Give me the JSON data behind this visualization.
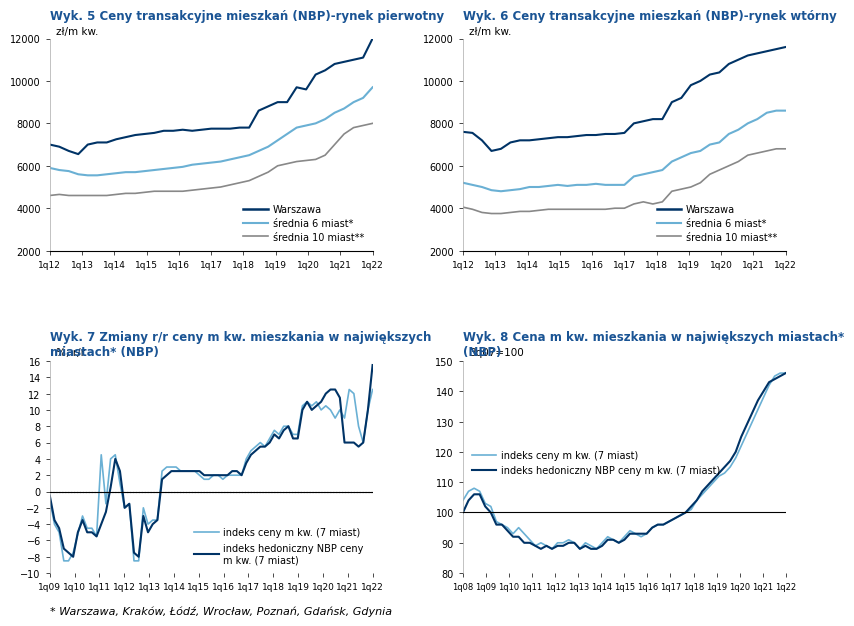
{
  "title5": "Wyk. 5 Ceny transakcyjne mieszkań (NBP)-rynek pierwotny",
  "title6": "Wyk. 6 Ceny transakcyjne mieszkań (NBP)-rynek wtórny",
  "title7": "Wyk. 7 Zmiany r/r ceny m kw. mieszkania w największych\nmiastach* (NBP)",
  "title8": "Wyk. 8 Cena m kw. mieszkania w największych miastach*\n(NBP)",
  "footnote": "* Warszawa, Kraków, Łódź, Wrocław, Poznań, Gdańsk, Gdynia",
  "chart5_xticks": [
    "1q12",
    "1q13",
    "1q14",
    "1q15",
    "1q16",
    "1q17",
    "1q18",
    "1q19",
    "1q20",
    "1q21",
    "1q22"
  ],
  "chart5_ylim": [
    2000,
    12000
  ],
  "chart5_yticks": [
    2000,
    4000,
    6000,
    8000,
    10000,
    12000
  ],
  "chart5_ylabel": "zł/m kw.",
  "chart5_warszawa": [
    7000,
    6900,
    6700,
    6550,
    7000,
    7100,
    7100,
    7250,
    7350,
    7450,
    7500,
    7550,
    7650,
    7650,
    7700,
    7650,
    7700,
    7750,
    7750,
    7750,
    7800,
    7800,
    8600,
    8800,
    9000,
    9000,
    9700,
    9600,
    10300,
    10500,
    10800,
    10900,
    11000,
    11100,
    12000
  ],
  "chart5_sr6": [
    5900,
    5800,
    5750,
    5600,
    5550,
    5550,
    5600,
    5650,
    5700,
    5700,
    5750,
    5800,
    5850,
    5900,
    5950,
    6050,
    6100,
    6150,
    6200,
    6300,
    6400,
    6500,
    6700,
    6900,
    7200,
    7500,
    7800,
    7900,
    8000,
    8200,
    8500,
    8700,
    9000,
    9200,
    9700
  ],
  "chart5_sr10": [
    4600,
    4650,
    4600,
    4600,
    4600,
    4600,
    4600,
    4650,
    4700,
    4700,
    4750,
    4800,
    4800,
    4800,
    4800,
    4850,
    4900,
    4950,
    5000,
    5100,
    5200,
    5300,
    5500,
    5700,
    6000,
    6100,
    6200,
    6250,
    6300,
    6500,
    7000,
    7500,
    7800,
    7900,
    8000
  ],
  "chart6_xticks": [
    "1q12",
    "1q13",
    "1q14",
    "1q15",
    "1q16",
    "1q17",
    "1q18",
    "1q19",
    "1q20",
    "1q21",
    "1q22"
  ],
  "chart6_ylim": [
    2000,
    12000
  ],
  "chart6_yticks": [
    2000,
    4000,
    6000,
    8000,
    10000,
    12000
  ],
  "chart6_ylabel": "zł/m kw.",
  "chart6_warszawa": [
    7600,
    7550,
    7200,
    6700,
    6800,
    7100,
    7200,
    7200,
    7250,
    7300,
    7350,
    7350,
    7400,
    7450,
    7450,
    7500,
    7500,
    7550,
    8000,
    8100,
    8200,
    8200,
    9000,
    9200,
    9800,
    10000,
    10300,
    10400,
    10800,
    11000,
    11200,
    11300,
    11400,
    11500,
    11600
  ],
  "chart6_sr6": [
    5200,
    5100,
    5000,
    4850,
    4800,
    4850,
    4900,
    5000,
    5000,
    5050,
    5100,
    5050,
    5100,
    5100,
    5150,
    5100,
    5100,
    5100,
    5500,
    5600,
    5700,
    5800,
    6200,
    6400,
    6600,
    6700,
    7000,
    7100,
    7500,
    7700,
    8000,
    8200,
    8500,
    8600,
    8600
  ],
  "chart6_sr10": [
    4050,
    3950,
    3800,
    3750,
    3750,
    3800,
    3850,
    3850,
    3900,
    3950,
    3950,
    3950,
    3950,
    3950,
    3950,
    3950,
    4000,
    4000,
    4200,
    4300,
    4200,
    4300,
    4800,
    4900,
    5000,
    5200,
    5600,
    5800,
    6000,
    6200,
    6500,
    6600,
    6700,
    6800,
    6800
  ],
  "chart7_xticks": [
    "1q09",
    "1q10",
    "1q11",
    "1q12",
    "1q13",
    "1q14",
    "1q15",
    "1q16",
    "1q17",
    "1q18",
    "1q19",
    "1q20",
    "1q21",
    "1q22"
  ],
  "chart7_ylim": [
    -10,
    16
  ],
  "chart7_yticks": [
    -10,
    -8,
    -6,
    -4,
    -2,
    0,
    2,
    4,
    6,
    8,
    10,
    12,
    14,
    16
  ],
  "chart7_ylabel": "%; r/r",
  "chart7_indeks": [
    -1.0,
    -4.0,
    -5.0,
    -8.5,
    -8.5,
    -7.5,
    -5.2,
    -3.0,
    -4.5,
    -4.5,
    -5.5,
    4.5,
    -1.5,
    4.0,
    4.5,
    1.0,
    -2.0,
    -1.5,
    -8.5,
    -8.5,
    -2.0,
    -4.0,
    -3.5,
    -3.5,
    2.5,
    3.0,
    3.0,
    3.0,
    2.5,
    2.5,
    2.5,
    2.5,
    2.0,
    1.5,
    1.5,
    2.0,
    2.0,
    1.5,
    2.0,
    2.0,
    2.0,
    2.0,
    4.0,
    5.0,
    5.5,
    6.0,
    5.5,
    6.5,
    7.5,
    7.0,
    8.0,
    8.0,
    7.0,
    7.0,
    10.5,
    11.0,
    10.5,
    11.0,
    10.0,
    10.5,
    10.0,
    9.0,
    10.0,
    9.0,
    12.5,
    12.0,
    8.0,
    6.0,
    10.0,
    12.5
  ],
  "chart7_hedon": [
    -0.5,
    -3.5,
    -4.5,
    -7.0,
    -7.5,
    -8.0,
    -5.0,
    -3.5,
    -5.0,
    -5.0,
    -5.5,
    -4.0,
    -2.5,
    0.5,
    4.0,
    2.5,
    -2.0,
    -1.5,
    -7.5,
    -8.0,
    -3.0,
    -5.0,
    -4.0,
    -3.5,
    1.5,
    2.0,
    2.5,
    2.5,
    2.5,
    2.5,
    2.5,
    2.5,
    2.5,
    2.0,
    2.0,
    2.0,
    2.0,
    2.0,
    2.0,
    2.5,
    2.5,
    2.0,
    3.5,
    4.5,
    5.0,
    5.5,
    5.5,
    6.0,
    7.0,
    6.5,
    7.5,
    8.0,
    6.5,
    6.5,
    10.0,
    11.0,
    10.0,
    10.5,
    11.0,
    12.0,
    12.5,
    12.5,
    11.5,
    6.0,
    6.0,
    6.0,
    5.5,
    6.0,
    10.0,
    15.5
  ],
  "chart8_xticks": [
    "1q08",
    "1q09",
    "1q10",
    "1q11",
    "1q12",
    "1q13",
    "1q14",
    "1q15",
    "1q16",
    "1q17",
    "1q18",
    "1q19",
    "1q20",
    "1q21",
    "1q22"
  ],
  "chart8_ylim": [
    80,
    150
  ],
  "chart8_yticks": [
    80,
    90,
    100,
    110,
    120,
    130,
    140,
    150
  ],
  "chart8_ylabel": "3q07=100",
  "chart8_indeks": [
    104,
    107,
    108,
    107,
    103,
    102,
    97,
    96,
    95,
    93,
    95,
    93,
    91,
    89,
    90,
    89,
    88,
    90,
    90,
    91,
    90,
    88,
    90,
    89,
    88,
    90,
    92,
    91,
    90,
    92,
    94,
    93,
    92,
    93,
    95,
    96,
    96,
    97,
    98,
    99,
    100,
    101,
    104,
    106,
    108,
    110,
    112,
    113,
    115,
    118,
    122,
    126,
    130,
    134,
    138,
    142,
    145,
    146,
    146
  ],
  "chart8_hedon": [
    100,
    104,
    106,
    106,
    102,
    100,
    96,
    96,
    94,
    92,
    92,
    90,
    90,
    89,
    88,
    89,
    88,
    89,
    89,
    90,
    90,
    88,
    89,
    88,
    88,
    89,
    91,
    91,
    90,
    91,
    93,
    93,
    93,
    93,
    95,
    96,
    96,
    97,
    98,
    99,
    100,
    102,
    104,
    107,
    109,
    111,
    113,
    115,
    117,
    120,
    125,
    129,
    133,
    137,
    140,
    143,
    144,
    145,
    146
  ],
  "color_warszawa": "#003366",
  "color_sr6": "#6ab0d4",
  "color_sr10": "#888888",
  "color_indeks": "#6ab0d4",
  "color_hedon": "#003366",
  "title_color": "#1a5494",
  "background_color": "#ffffff"
}
